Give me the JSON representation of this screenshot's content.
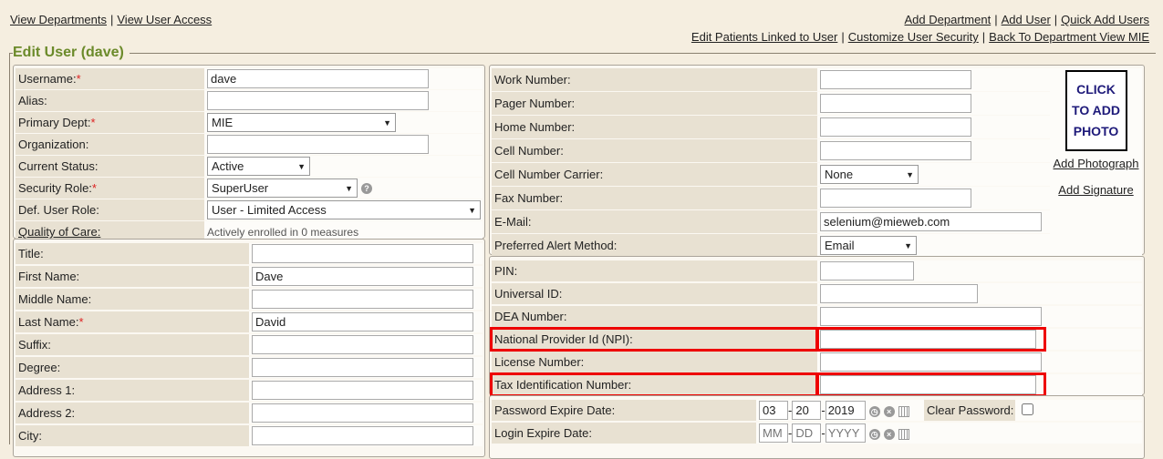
{
  "top_nav_left": [
    "View Departments",
    "View User Access"
  ],
  "top_nav_right_1": [
    "Add Department",
    "Add User",
    "Quick Add Users"
  ],
  "top_nav_right_2": [
    "Edit Patients Linked to User",
    "Customize User Security",
    "Back To Department View MIE"
  ],
  "title": "Edit User (dave)",
  "account": {
    "username_label": "Username:",
    "username": "dave",
    "alias_label": "Alias:",
    "alias": "",
    "primary_dept_label": "Primary Dept:",
    "primary_dept": "MIE",
    "organization_label": "Organization:",
    "organization": "",
    "status_label": "Current Status:",
    "status": "Active",
    "security_role_label": "Security Role:",
    "security_role": "SuperUser",
    "def_role_label": "Def. User Role:",
    "def_role": "User - Limited Access",
    "qoc_label": "Quality of Care:",
    "qoc_value": "Actively enrolled in 0 measures"
  },
  "name": {
    "rows": [
      {
        "label": "Title:",
        "value": "",
        "req": false
      },
      {
        "label": "First Name:",
        "value": "Dave",
        "req": false
      },
      {
        "label": "Middle Name:",
        "value": "",
        "req": false
      },
      {
        "label": "Last Name:",
        "value": "David",
        "req": true
      },
      {
        "label": "Suffix:",
        "value": "",
        "req": false
      },
      {
        "label": "Degree:",
        "value": "",
        "req": false
      },
      {
        "label": "Address 1:",
        "value": "",
        "req": false
      },
      {
        "label": "Address 2:",
        "value": "",
        "req": false
      },
      {
        "label": "City:",
        "value": "",
        "req": false
      }
    ]
  },
  "contact": {
    "work_label": "Work Number:",
    "work": "",
    "pager_label": "Pager Number:",
    "pager": "",
    "home_label": "Home Number:",
    "home": "",
    "cell_label": "Cell Number:",
    "cell": "",
    "carrier_label": "Cell Number Carrier:",
    "carrier": "None",
    "fax_label": "Fax Number:",
    "fax": "",
    "email_label": "E-Mail:",
    "email": "selenium@mieweb.com",
    "alert_label": "Preferred Alert Method:",
    "alert": "Email"
  },
  "photo": {
    "text_lines": [
      "CLICK",
      "TO ADD",
      "PHOTO"
    ],
    "add_photo": "Add Photograph",
    "add_signature": "Add Signature"
  },
  "ids": {
    "pin_label": "PIN:",
    "universal_label": "Universal ID:",
    "dea_label": "DEA Number:",
    "npi_label": "National Provider Id (NPI):",
    "license_label": "License Number:",
    "tax_label": "Tax Identification Number:"
  },
  "dates": {
    "pw_label": "Password Expire Date:",
    "pw_mm": "03",
    "pw_dd": "20",
    "pw_yyyy": "2019",
    "clear_pw_label": "Clear Password:",
    "login_label": "Login Expire Date:",
    "ph_mm": "MM",
    "ph_dd": "DD",
    "ph_yyyy": "YYYY"
  },
  "colors": {
    "legend": "#6b8a2a",
    "highlight": "#e00000",
    "photo_text": "#1e1a7a"
  }
}
